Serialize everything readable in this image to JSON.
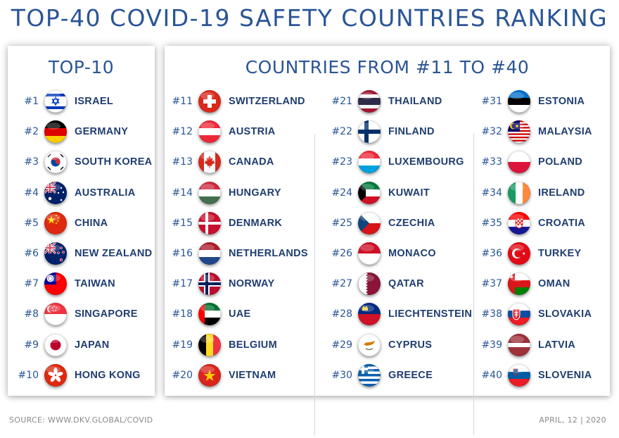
{
  "title": "TOP-40 COVID-19 SAFETY COUNTRIES RANKING",
  "left_panel": {
    "title": "TOP-10"
  },
  "right_panel": {
    "title": "COUNTRIES FROM #11 TO #40"
  },
  "countries": [
    {
      "rank": "#1",
      "name": "ISRAEL",
      "flag": "israel-flag-icon"
    },
    {
      "rank": "#2",
      "name": "GERMANY",
      "flag": "germany-flag-icon"
    },
    {
      "rank": "#3",
      "name": "SOUTH KOREA",
      "flag": "south-korea-flag-icon"
    },
    {
      "rank": "#4",
      "name": "AUSTRALIA",
      "flag": "australia-flag-icon"
    },
    {
      "rank": "#5",
      "name": "CHINA",
      "flag": "china-flag-icon"
    },
    {
      "rank": "#6",
      "name": "NEW ZEALAND",
      "flag": "new-zealand-flag-icon"
    },
    {
      "rank": "#7",
      "name": "TAIWAN",
      "flag": "taiwan-flag-icon"
    },
    {
      "rank": "#8",
      "name": "SINGAPORE",
      "flag": "singapore-flag-icon"
    },
    {
      "rank": "#9",
      "name": "JAPAN",
      "flag": "japan-flag-icon"
    },
    {
      "rank": "#10",
      "name": "HONG KONG",
      "flag": "hong-kong-flag-icon"
    },
    {
      "rank": "#11",
      "name": "SWITZERLAND",
      "flag": "switzerland-flag-icon"
    },
    {
      "rank": "#12",
      "name": "AUSTRIA",
      "flag": "austria-flag-icon"
    },
    {
      "rank": "#13",
      "name": "CANADA",
      "flag": "canada-flag-icon"
    },
    {
      "rank": "#14",
      "name": "HUNGARY",
      "flag": "hungary-flag-icon"
    },
    {
      "rank": "#15",
      "name": "DENMARK",
      "flag": "denmark-flag-icon"
    },
    {
      "rank": "#16",
      "name": "NETHERLANDS",
      "flag": "netherlands-flag-icon"
    },
    {
      "rank": "#17",
      "name": "NORWAY",
      "flag": "norway-flag-icon"
    },
    {
      "rank": "#18",
      "name": "UAE",
      "flag": "uae-flag-icon"
    },
    {
      "rank": "#19",
      "name": "BELGIUM",
      "flag": "belgium-flag-icon"
    },
    {
      "rank": "#20",
      "name": "VIETNAM",
      "flag": "vietnam-flag-icon"
    },
    {
      "rank": "#21",
      "name": "THAILAND",
      "flag": "thailand-flag-icon"
    },
    {
      "rank": "#22",
      "name": "FINLAND",
      "flag": "finland-flag-icon"
    },
    {
      "rank": "#23",
      "name": "LUXEMBOURG",
      "flag": "luxembourg-flag-icon"
    },
    {
      "rank": "#24",
      "name": "KUWAIT",
      "flag": "kuwait-flag-icon"
    },
    {
      "rank": "#25",
      "name": "CZECHIA",
      "flag": "czechia-flag-icon"
    },
    {
      "rank": "#26",
      "name": "MONACO",
      "flag": "monaco-flag-icon"
    },
    {
      "rank": "#27",
      "name": "QATAR",
      "flag": "qatar-flag-icon"
    },
    {
      "rank": "#28",
      "name": "LIECHTENSTEIN",
      "flag": "liechtenstein-flag-icon"
    },
    {
      "rank": "#29",
      "name": "CYPRUS",
      "flag": "cyprus-flag-icon"
    },
    {
      "rank": "#30",
      "name": "GREECE",
      "flag": "greece-flag-icon"
    },
    {
      "rank": "#31",
      "name": "ESTONIA",
      "flag": "estonia-flag-icon"
    },
    {
      "rank": "#32",
      "name": "MALAYSIA",
      "flag": "malaysia-flag-icon"
    },
    {
      "rank": "#33",
      "name": "POLAND",
      "flag": "poland-flag-icon"
    },
    {
      "rank": "#34",
      "name": "IRELAND",
      "flag": "ireland-flag-icon"
    },
    {
      "rank": "#35",
      "name": "CROATIA",
      "flag": "croatia-flag-icon"
    },
    {
      "rank": "#36",
      "name": "TURKEY",
      "flag": "turkey-flag-icon"
    },
    {
      "rank": "#37",
      "name": "OMAN",
      "flag": "oman-flag-icon"
    },
    {
      "rank": "#38",
      "name": "SLOVAKIA",
      "flag": "slovakia-flag-icon"
    },
    {
      "rank": "#39",
      "name": "LATVIA",
      "flag": "latvia-flag-icon"
    },
    {
      "rank": "#40",
      "name": "SLOVENIA",
      "flag": "slovenia-flag-icon"
    }
  ],
  "footer": {
    "source": "SOURCE: WWW.DKV.GLOBAL/COVID",
    "date": "APRIL, 12 | 2020"
  },
  "colors": {
    "heading": "#2a5596",
    "country_name": "#1f3d70",
    "footer_text": "#8a8a8a"
  }
}
